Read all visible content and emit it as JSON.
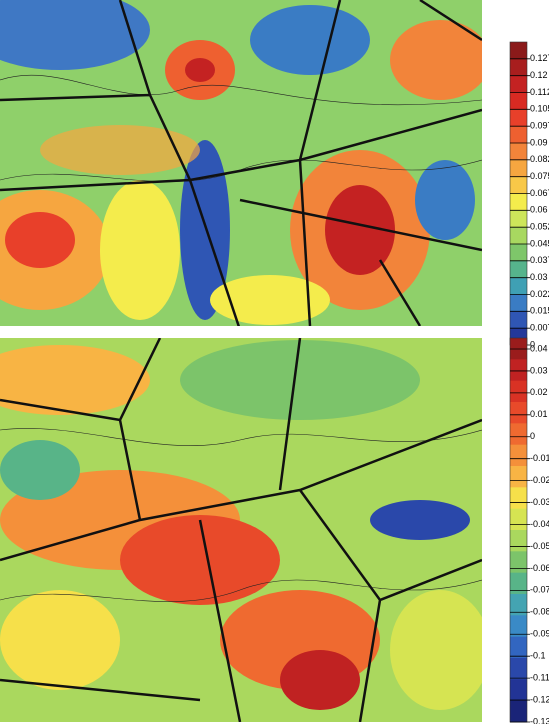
{
  "chart_data": [
    {
      "type": "contour",
      "clim": [
        0,
        0.135
      ],
      "colorbar": {
        "ticks": [
          0.1275,
          0.12,
          0.1125,
          0.105,
          0.0975,
          0.09,
          0.0825,
          0.075,
          0.0675,
          0.06,
          0.0525,
          0.045,
          0.0375,
          0.03,
          0.0225,
          0.015,
          0.0075,
          0
        ],
        "colors": [
          "#8b1a1a",
          "#a81e1e",
          "#c42222",
          "#d92a22",
          "#e8402a",
          "#ee6030",
          "#f2843a",
          "#f6a640",
          "#f8c848",
          "#f4ec4c",
          "#cde65a",
          "#a8d860",
          "#7ec66a",
          "#56b48c",
          "#3fa0b4",
          "#3a7cc4",
          "#2f56b4",
          "#24389a"
        ]
      }
    },
    {
      "type": "contour",
      "clim": [
        -0.13,
        0.045
      ],
      "colorbar": {
        "ticks": [
          0.04,
          0.03,
          0.02,
          0.01,
          0,
          -0.01,
          -0.02,
          -0.03,
          -0.04,
          -0.05,
          -0.06,
          -0.07,
          -0.08,
          -0.09,
          -0.1,
          -0.11,
          -0.12,
          -0.13
        ],
        "colors": [
          "#9a1c1c",
          "#c02222",
          "#d93224",
          "#e84a2a",
          "#ef6a30",
          "#f4903a",
          "#f8b444",
          "#f6e04a",
          "#d6e452",
          "#aad85e",
          "#7cc46a",
          "#58b488",
          "#44a4b2",
          "#3a8ac6",
          "#3266c0",
          "#2a48aa",
          "#223496",
          "#1a2478"
        ]
      }
    }
  ]
}
